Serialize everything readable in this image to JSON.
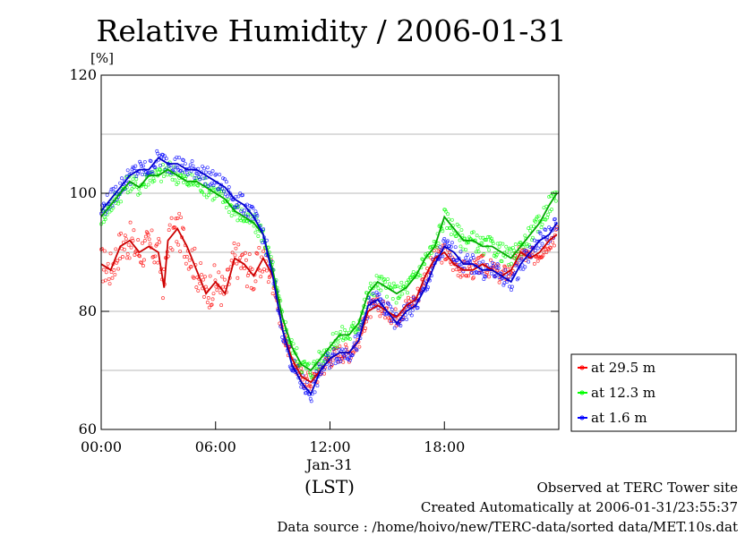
{
  "chart_data": {
    "type": "line",
    "title": "Relative Humidity / 2006-01-31",
    "ylabel": "[%]",
    "xlabel": "(LST)",
    "ylim": [
      60,
      120
    ],
    "xlim": [
      0,
      24
    ],
    "yticks": [
      60,
      80,
      100,
      120
    ],
    "ytick_labels": [
      "60",
      "80",
      "100",
      "120"
    ],
    "ygrid": [
      70,
      80,
      90,
      100,
      110
    ],
    "xticks": [
      0,
      6,
      12,
      18
    ],
    "xtick_labels": [
      "00:00",
      "06:00",
      "12:00",
      "18:00"
    ],
    "date_label": "Jan-31",
    "legend_position": "right",
    "x_unit": "hours LST",
    "series": [
      {
        "name": "at 29.5 m",
        "color": "#ff0000",
        "x": [
          0,
          0.5,
          1,
          1.5,
          2,
          2.5,
          3,
          3.3,
          3.5,
          4,
          4.5,
          5,
          5.5,
          6,
          6.5,
          7,
          7.5,
          8,
          8.5,
          9,
          9.5,
          10,
          10.5,
          11,
          11.5,
          12,
          12.5,
          13,
          13.5,
          14,
          14.5,
          15,
          15.5,
          16,
          16.5,
          17,
          17.5,
          18,
          18.5,
          19,
          19.5,
          20,
          20.5,
          21,
          21.5,
          22,
          22.5,
          23,
          23.5,
          23.9
        ],
        "y": [
          88,
          87,
          91,
          92,
          90,
          91,
          90,
          84,
          92,
          94,
          91,
          87,
          83,
          85,
          83,
          89,
          88,
          86,
          89,
          86,
          77,
          72,
          69,
          68,
          70,
          72,
          73,
          73,
          75,
          80,
          81,
          80,
          79,
          81,
          82,
          86,
          89,
          90,
          88,
          87,
          87,
          88,
          87,
          86,
          87,
          90,
          89,
          90,
          92,
          93
        ]
      },
      {
        "name": "at 12.3 m",
        "color": "#00ff00",
        "x": [
          0,
          0.5,
          1,
          1.5,
          2,
          2.5,
          3,
          3.5,
          4,
          4.5,
          5,
          5.5,
          6,
          6.5,
          7,
          7.5,
          8,
          8.5,
          9,
          9.5,
          10,
          10.5,
          11,
          11.5,
          12,
          12.5,
          13,
          13.5,
          14,
          14.5,
          15,
          15.5,
          16,
          16.5,
          17,
          17.5,
          18,
          18.5,
          19,
          19.5,
          20,
          20.5,
          21,
          21.5,
          22,
          22.5,
          23,
          23.5,
          23.9
        ],
        "y": [
          96,
          98,
          100,
          102,
          101,
          103,
          103,
          104,
          103,
          102,
          102,
          101,
          100,
          99,
          97,
          96,
          95,
          93,
          87,
          79,
          74,
          71,
          70,
          72,
          74,
          76,
          76,
          78,
          83,
          85,
          84,
          83,
          84,
          86,
          89,
          91,
          96,
          94,
          92,
          92,
          91,
          91,
          90,
          89,
          91,
          93,
          95,
          98,
          100
        ]
      },
      {
        "name": "at 1.6 m",
        "color": "#0000ff",
        "x": [
          0,
          0.5,
          1,
          1.5,
          2,
          2.5,
          3,
          3.5,
          4,
          4.5,
          5,
          5.5,
          6,
          6.5,
          7,
          7.5,
          8,
          8.5,
          9,
          9.5,
          10,
          10.5,
          11,
          11.5,
          12,
          12.5,
          13,
          13.5,
          14,
          14.5,
          15,
          15.5,
          16,
          16.5,
          17,
          17.5,
          18,
          18.5,
          19,
          19.5,
          20,
          20.5,
          21,
          21.5,
          22,
          22.5,
          23,
          23.5,
          23.9
        ],
        "y": [
          97,
          99,
          101,
          103,
          104,
          104,
          106,
          105,
          105,
          104,
          104,
          103,
          102,
          101,
          99,
          98,
          96,
          93,
          86,
          77,
          71,
          68,
          66,
          70,
          72,
          73,
          73,
          75,
          81,
          82,
          80,
          78,
          80,
          81,
          84,
          88,
          91,
          90,
          88,
          88,
          87,
          87,
          86,
          85,
          88,
          90,
          92,
          93,
          95
        ]
      }
    ]
  },
  "footer": {
    "line1": "Observed at TERC Tower site",
    "line2": "Created Automatically at 2006-01-31/23:55:37",
    "line3": "Data source : /home/hoivo/new/TERC-data/sorted  data/MET.10s.dat"
  }
}
